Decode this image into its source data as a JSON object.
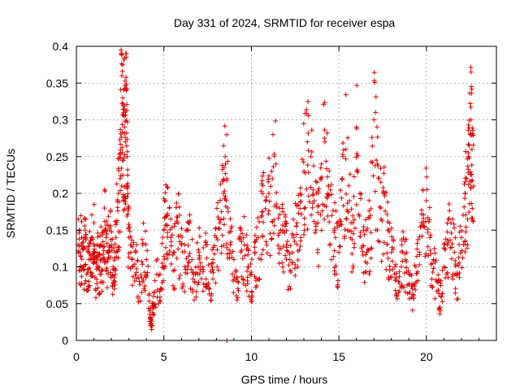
{
  "chart_data": {
    "type": "scatter",
    "title": "Day 331 of 2024, SRMTID for receiver espa",
    "xlabel": "GPS time / hours",
    "ylabel": "SRMTID / TECUs",
    "xlim": [
      0,
      24
    ],
    "ylim": [
      0,
      0.4
    ],
    "xticks": [
      0,
      5,
      10,
      15,
      20
    ],
    "xtick_labels": [
      "0",
      "5",
      "10",
      "15",
      "20"
    ],
    "yticks": [
      0,
      0.05,
      0.1,
      0.15,
      0.2,
      0.25,
      0.3,
      0.35,
      0.4
    ],
    "ytick_labels": [
      "0",
      "0.05",
      "0.1",
      "0.15",
      "0.2",
      "0.25",
      "0.3",
      "0.35",
      "0.4"
    ],
    "grid": true,
    "marker": "+",
    "color": "#e00000",
    "series": [
      {
        "name": "espa",
        "points": [
          [
            0.1,
            0.13
          ],
          [
            0.2,
            0.12
          ],
          [
            0.3,
            0.14
          ],
          [
            0.4,
            0.1
          ],
          [
            0.5,
            0.15
          ],
          [
            0.6,
            0.09
          ],
          [
            0.7,
            0.12
          ],
          [
            0.8,
            0.11
          ],
          [
            0.9,
            0.14
          ],
          [
            1.0,
            0.16
          ],
          [
            1.1,
            0.07
          ],
          [
            1.2,
            0.12
          ],
          [
            1.3,
            0.1
          ],
          [
            1.4,
            0.13
          ],
          [
            1.5,
            0.11
          ],
          [
            1.6,
            0.18
          ],
          [
            1.7,
            0.14
          ],
          [
            1.8,
            0.12
          ],
          [
            1.9,
            0.15
          ],
          [
            2.0,
            0.13
          ],
          [
            2.1,
            0.1
          ],
          [
            2.2,
            0.12
          ],
          [
            2.3,
            0.16
          ],
          [
            2.4,
            0.2
          ],
          [
            2.5,
            0.22
          ],
          [
            2.55,
            0.395
          ],
          [
            2.6,
            0.36
          ],
          [
            2.65,
            0.33
          ],
          [
            2.7,
            0.31
          ],
          [
            2.75,
            0.29
          ],
          [
            2.8,
            0.27
          ],
          [
            2.85,
            0.34
          ],
          [
            2.9,
            0.25
          ],
          [
            2.95,
            0.18
          ],
          [
            3.0,
            0.14
          ],
          [
            3.2,
            0.1
          ],
          [
            3.4,
            0.12
          ],
          [
            3.6,
            0.08
          ],
          [
            3.8,
            0.13
          ],
          [
            4.0,
            0.11
          ],
          [
            4.2,
            0.04
          ],
          [
            4.3,
            0.015
          ],
          [
            4.4,
            0.06
          ],
          [
            4.6,
            0.09
          ],
          [
            4.8,
            0.07
          ],
          [
            5.0,
            0.15
          ],
          [
            5.1,
            0.19
          ],
          [
            5.2,
            0.17
          ],
          [
            5.4,
            0.14
          ],
          [
            5.6,
            0.12
          ],
          [
            5.8,
            0.16
          ],
          [
            6.0,
            0.13
          ],
          [
            6.2,
            0.1
          ],
          [
            6.4,
            0.15
          ],
          [
            6.6,
            0.11
          ],
          [
            6.8,
            0.09
          ],
          [
            7.0,
            0.12
          ],
          [
            7.2,
            0.1
          ],
          [
            7.4,
            0.13
          ],
          [
            7.6,
            0.07
          ],
          [
            7.8,
            0.11
          ],
          [
            8.0,
            0.14
          ],
          [
            8.2,
            0.16
          ],
          [
            8.4,
            0.2
          ],
          [
            8.5,
            0.25
          ],
          [
            8.6,
            0.22
          ],
          [
            8.8,
            0.13
          ],
          [
            9.0,
            0.11
          ],
          [
            9.2,
            0.08
          ],
          [
            9.4,
            0.15
          ],
          [
            9.6,
            0.13
          ],
          [
            9.8,
            0.1
          ],
          [
            10.0,
            0.09
          ],
          [
            10.2,
            0.12
          ],
          [
            10.4,
            0.14
          ],
          [
            10.6,
            0.17
          ],
          [
            10.8,
            0.19
          ],
          [
            11.0,
            0.2
          ],
          [
            11.2,
            0.22
          ],
          [
            11.4,
            0.24
          ],
          [
            11.6,
            0.18
          ],
          [
            11.8,
            0.15
          ],
          [
            12.0,
            0.13
          ],
          [
            12.2,
            0.11
          ],
          [
            12.4,
            0.14
          ],
          [
            12.6,
            0.16
          ],
          [
            12.8,
            0.2
          ],
          [
            13.0,
            0.23
          ],
          [
            13.2,
            0.27
          ],
          [
            13.4,
            0.25
          ],
          [
            13.6,
            0.19
          ],
          [
            13.8,
            0.16
          ],
          [
            14.0,
            0.24
          ],
          [
            14.2,
            0.27
          ],
          [
            14.4,
            0.21
          ],
          [
            14.6,
            0.17
          ],
          [
            14.8,
            0.14
          ],
          [
            15.0,
            0.12
          ],
          [
            15.2,
            0.22
          ],
          [
            15.4,
            0.26
          ],
          [
            15.6,
            0.19
          ],
          [
            15.8,
            0.16
          ],
          [
            16.0,
            0.29
          ],
          [
            16.2,
            0.2
          ],
          [
            16.4,
            0.15
          ],
          [
            16.6,
            0.12
          ],
          [
            16.8,
            0.17
          ],
          [
            17.0,
            0.3
          ],
          [
            17.2,
            0.24
          ],
          [
            17.4,
            0.18
          ],
          [
            17.6,
            0.2
          ],
          [
            17.8,
            0.15
          ],
          [
            18.0,
            0.12
          ],
          [
            18.2,
            0.1
          ],
          [
            18.4,
            0.08
          ],
          [
            18.6,
            0.13
          ],
          [
            18.8,
            0.11
          ],
          [
            19.0,
            0.09
          ],
          [
            19.2,
            0.07
          ],
          [
            19.4,
            0.1
          ],
          [
            19.6,
            0.12
          ],
          [
            19.8,
            0.16
          ],
          [
            20.0,
            0.19
          ],
          [
            20.2,
            0.14
          ],
          [
            20.4,
            0.11
          ],
          [
            20.6,
            0.08
          ],
          [
            20.8,
            0.06
          ],
          [
            21.0,
            0.1
          ],
          [
            21.2,
            0.13
          ],
          [
            21.4,
            0.16
          ],
          [
            21.6,
            0.12
          ],
          [
            21.8,
            0.09
          ],
          [
            22.0,
            0.14
          ],
          [
            22.2,
            0.2
          ],
          [
            22.3,
            0.22
          ],
          [
            22.4,
            0.25
          ],
          [
            22.5,
            0.28
          ],
          [
            22.55,
            0.3
          ],
          [
            22.6,
            0.26
          ],
          [
            22.7,
            0.21
          ]
        ]
      }
    ],
    "noise_seed": 331
  }
}
